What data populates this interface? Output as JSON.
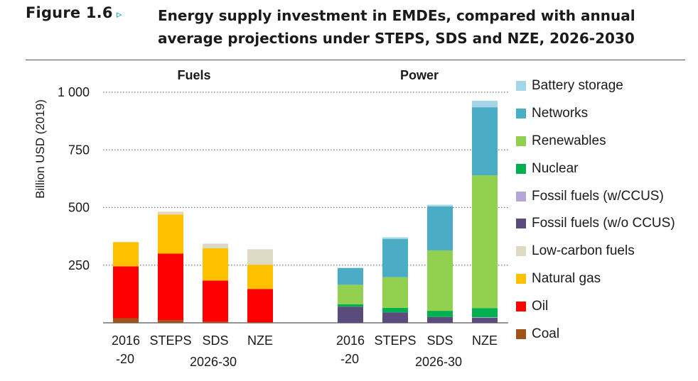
{
  "figure": {
    "label": "Figure 1.6",
    "arrow": "▹",
    "title": "Energy supply investment in EMDEs, compared with annual average projections under STEPS, SDS and NZE, 2026-2030"
  },
  "chart_data": {
    "type": "bar",
    "stacked": true,
    "ylabel": "Billion USD (2019)",
    "ylim": [
      0,
      1000
    ],
    "yticks": [
      250,
      500,
      750,
      1000
    ],
    "ytick_labels": [
      "250",
      "500",
      "750",
      "1 000"
    ],
    "grid": "horizontal dotted",
    "legend_position": "right",
    "panels": [
      {
        "title": "Fuels",
        "categories": [
          "2016-20",
          "STEPS",
          "SDS",
          "NZE"
        ],
        "category_labels": [
          [
            "2016",
            "-20"
          ],
          [
            "STEPS",
            ""
          ],
          [
            "SDS",
            ""
          ],
          [
            "NZE",
            ""
          ]
        ],
        "group_label": "2026-30",
        "series": [
          {
            "name": "Coal",
            "color": "#a0521d",
            "values": [
              20,
              12,
              5,
              3
            ]
          },
          {
            "name": "Oil",
            "color": "#ff0000",
            "values": [
              225,
              288,
              178,
              144
            ]
          },
          {
            "name": "Natural gas",
            "color": "#ffc000",
            "values": [
              105,
              170,
              140,
              105
            ]
          },
          {
            "name": "Low-carbon fuels",
            "color": "#ddd9c4",
            "values": [
              0,
              12,
              20,
              67
            ]
          }
        ]
      },
      {
        "title": "Power",
        "categories": [
          "2016-20",
          "STEPS",
          "SDS",
          "NZE"
        ],
        "category_labels": [
          [
            "2016",
            "-20"
          ],
          [
            "STEPS",
            ""
          ],
          [
            "SDS",
            ""
          ],
          [
            "NZE",
            ""
          ]
        ],
        "group_label": "2026-30",
        "series": [
          {
            "name": "Fossil fuels (w/o CCUS)",
            "color": "#5b4b7c",
            "values": [
              70,
              45,
              25,
              22
            ]
          },
          {
            "name": "Fossil fuels (w/CCUS)",
            "color": "#b4a7d6",
            "values": [
              0,
              0,
              0,
              2
            ]
          },
          {
            "name": "Nuclear",
            "color": "#00b050",
            "values": [
              10,
              20,
              27,
              40
            ]
          },
          {
            "name": "Renewables",
            "color": "#92d050",
            "values": [
              85,
              133,
              262,
              576
            ]
          },
          {
            "name": "Networks",
            "color": "#4bacc6",
            "values": [
              73,
              166,
              191,
              295
            ]
          },
          {
            "name": "Battery storage",
            "color": "#a5d6e7",
            "values": [
              0,
              7,
              7,
              28
            ]
          }
        ]
      }
    ]
  },
  "legend": [
    {
      "label": "Battery storage",
      "color": "#a5d6e7"
    },
    {
      "label": "Networks",
      "color": "#4bacc6"
    },
    {
      "label": "Renewables",
      "color": "#92d050"
    },
    {
      "label": "Nuclear",
      "color": "#00b050"
    },
    {
      "label": "Fossil fuels (w/CCUS)",
      "color": "#b4a7d6"
    },
    {
      "label": "Fossil fuels (w/o CCUS)",
      "color": "#5b4b7c"
    },
    {
      "label": "Low-carbon fuels",
      "color": "#ddd9c4"
    },
    {
      "label": "Natural gas",
      "color": "#ffc000"
    },
    {
      "label": "Oil",
      "color": "#ff0000"
    },
    {
      "label": "Coal",
      "color": "#a0521d"
    }
  ]
}
